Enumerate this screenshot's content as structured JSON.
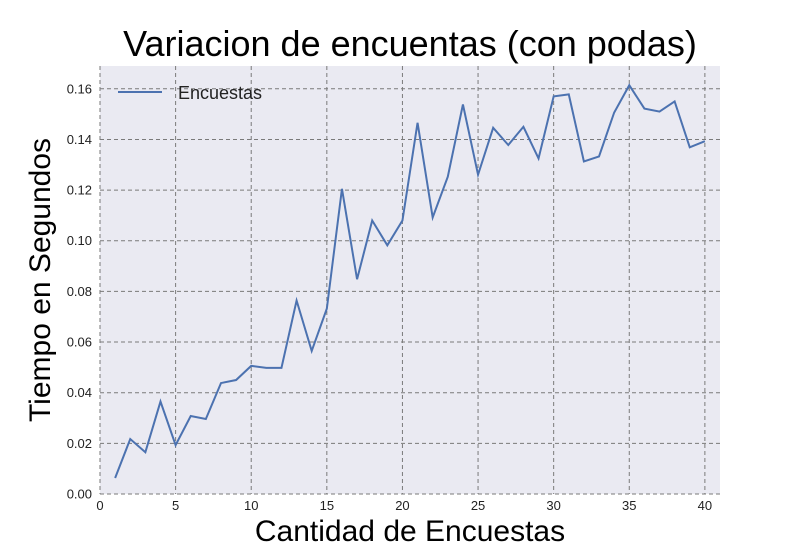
{
  "chart_data": {
    "type": "line",
    "title": "Variacion de encuentas (con podas)",
    "xlabel": "Cantidad de Encuestas",
    "ylabel": "Tiempo en Segundos",
    "xlim": [
      0,
      41
    ],
    "ylim": [
      0,
      0.169
    ],
    "x_ticks": [
      0,
      5,
      10,
      15,
      20,
      25,
      30,
      35,
      40
    ],
    "x_tick_labels": [
      "0",
      "5",
      "10",
      "15",
      "20",
      "25",
      "30",
      "35",
      "40"
    ],
    "y_ticks": [
      0,
      0.02,
      0.04,
      0.06,
      0.08,
      0.1,
      0.12,
      0.14,
      0.16
    ],
    "y_tick_labels": [
      "0.00",
      "0.02",
      "0.04",
      "0.06",
      "0.08",
      "0.10",
      "0.12",
      "0.14",
      "0.16"
    ],
    "grid": true,
    "legend_position": "top-left",
    "background_color": "#eaeaf2",
    "grid_color": "#7a7a7a",
    "series": [
      {
        "name": "Encuestas",
        "color": "#4c72b0",
        "x": [
          1,
          2,
          3,
          4,
          5,
          6,
          7,
          8,
          9,
          10,
          11,
          12,
          13,
          14,
          15,
          16,
          17,
          18,
          19,
          20,
          21,
          22,
          23,
          24,
          25,
          26,
          27,
          28,
          29,
          30,
          31,
          32,
          33,
          34,
          35,
          36,
          37,
          38,
          39,
          40
        ],
        "y": [
          0.0063,
          0.0217,
          0.0165,
          0.0365,
          0.0193,
          0.0308,
          0.0296,
          0.0438,
          0.045,
          0.0506,
          0.0498,
          0.0498,
          0.0764,
          0.0565,
          0.0732,
          0.1205,
          0.0848,
          0.108,
          0.0982,
          0.108,
          0.1466,
          0.1092,
          0.1253,
          0.1538,
          0.1261,
          0.1446,
          0.1378,
          0.145,
          0.1325,
          0.157,
          0.1578,
          0.1313,
          0.1333,
          0.1506,
          0.1614,
          0.1522,
          0.151,
          0.155,
          0.1369,
          0.1393
        ]
      }
    ]
  }
}
